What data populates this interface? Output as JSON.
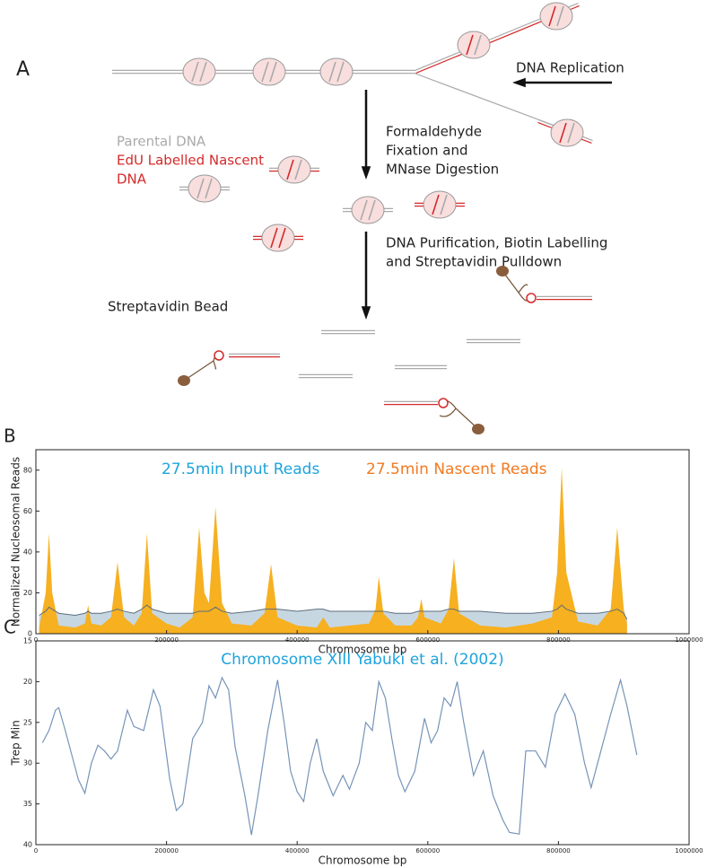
{
  "diagram": {
    "panel_label": "A",
    "replication": "DNA Replication",
    "parental": "Parental DNA",
    "nascent_lines": [
      "EdU Labelled Nascent",
      "DNA"
    ],
    "fixation_lines": [
      "Formaldehyde",
      "Fixation and",
      "MNase Digestion"
    ],
    "purification_lines": [
      "DNA Purification, Biotin Labelling",
      "and Streptavidin Pulldown"
    ],
    "bead": "Streptavidin Bead"
  },
  "chart_data": [
    {
      "type": "area",
      "panel_label": "B",
      "xlabel": "Chromosome bp",
      "ylabel": "Normalized Nucleosomal Reads",
      "xlim": [
        0,
        1000000
      ],
      "xticks": [
        0,
        200000,
        400000,
        600000,
        800000,
        1000000
      ],
      "ylim": [
        0,
        90
      ],
      "yticks": [
        0,
        20,
        40,
        60,
        80
      ],
      "x": [
        5000,
        15000,
        20000,
        25000,
        35000,
        60000,
        75000,
        80000,
        85000,
        100000,
        115000,
        125000,
        135000,
        150000,
        162000,
        170000,
        178000,
        200000,
        220000,
        240000,
        250000,
        258000,
        265000,
        275000,
        285000,
        300000,
        330000,
        350000,
        360000,
        370000,
        400000,
        430000,
        440000,
        450000,
        480000,
        510000,
        520000,
        525000,
        532000,
        550000,
        575000,
        585000,
        590000,
        595000,
        620000,
        632000,
        640000,
        648000,
        680000,
        720000,
        760000,
        790000,
        798000,
        805000,
        812000,
        830000,
        860000,
        880000,
        890000,
        900000,
        905000
      ],
      "series": [
        {
          "name": "27.5min Input  Reads",
          "color": "#c7d7e2",
          "line_color": "#5d6f7c",
          "label_color": "#1ea3dc",
          "values": [
            9,
            11,
            13,
            12,
            10,
            9,
            10,
            11,
            10,
            10,
            11,
            12,
            11,
            10,
            12,
            14,
            12,
            10,
            10,
            10,
            11,
            11,
            11,
            13,
            11,
            10,
            11,
            12,
            12,
            12,
            11,
            12,
            12,
            11,
            11,
            11,
            11,
            11,
            11,
            10,
            10,
            11,
            11,
            11,
            11,
            12,
            12,
            11,
            11,
            10,
            10,
            11,
            12,
            14,
            12,
            10,
            10,
            11,
            12,
            10,
            7
          ]
        },
        {
          "name": "27.5min Nascent Reads",
          "color": "#f6b020",
          "label_color": "#f07a22",
          "values": [
            3,
            20,
            49,
            20,
            4,
            3,
            5,
            14,
            5,
            4,
            8,
            35,
            8,
            4,
            10,
            49,
            10,
            5,
            3,
            8,
            52,
            20,
            15,
            62,
            15,
            5,
            4,
            10,
            34,
            8,
            4,
            3,
            8,
            3,
            4,
            5,
            12,
            28,
            10,
            4,
            4,
            8,
            17,
            8,
            5,
            12,
            37,
            10,
            4,
            3,
            5,
            8,
            30,
            81,
            30,
            6,
            4,
            12,
            52,
            12,
            5
          ]
        }
      ]
    },
    {
      "type": "line",
      "panel_label": "C",
      "title": "Chromosome XIII Yabuki et al. (2002)",
      "title_color": "#1ea3dc",
      "xlabel": "Chromosome bp",
      "ylabel": "Trep Min",
      "y_inverted": true,
      "xlim": [
        0,
        1000000
      ],
      "xticks": [
        0,
        200000,
        400000,
        600000,
        800000,
        1000000
      ],
      "ylim": [
        15,
        40
      ],
      "yticks": [
        15,
        20,
        25,
        30,
        35,
        40
      ],
      "x": [
        10000,
        20000,
        30000,
        35000,
        45000,
        55000,
        65000,
        75000,
        85000,
        95000,
        105000,
        115000,
        125000,
        140000,
        150000,
        165000,
        180000,
        190000,
        205000,
        215000,
        225000,
        240000,
        255000,
        265000,
        275000,
        285000,
        295000,
        305000,
        320000,
        330000,
        340000,
        355000,
        370000,
        380000,
        390000,
        400000,
        410000,
        420000,
        430000,
        440000,
        455000,
        470000,
        480000,
        495000,
        505000,
        515000,
        525000,
        535000,
        545000,
        555000,
        565000,
        580000,
        595000,
        605000,
        615000,
        625000,
        635000,
        645000,
        655000,
        670000,
        685000,
        700000,
        715000,
        725000,
        740000,
        750000,
        765000,
        780000,
        795000,
        810000,
        825000,
        840000,
        850000,
        865000,
        880000,
        895000,
        905000,
        920000
      ],
      "series": [
        {
          "color": "#7694b8",
          "values": [
            27.5,
            26,
            23.5,
            23.2,
            26,
            29,
            32,
            33.7,
            30,
            27.8,
            28.5,
            29.5,
            28.5,
            23.5,
            25.5,
            26,
            21,
            23,
            32,
            35.8,
            35,
            27,
            25,
            20.5,
            22,
            19.5,
            21,
            28,
            34,
            38.8,
            34,
            26,
            19.8,
            25,
            31,
            33.5,
            34.7,
            30,
            27,
            31,
            34,
            31.5,
            33.2,
            30,
            25,
            26,
            20,
            22,
            27,
            31.5,
            33.5,
            31,
            24.5,
            27.5,
            26,
            22,
            23,
            20,
            25,
            31.5,
            28.5,
            34,
            37,
            38.5,
            38.7,
            28.5,
            28.5,
            30.5,
            24,
            21.5,
            24,
            30,
            33,
            28.5,
            24,
            19.8,
            23,
            29
          ]
        }
      ]
    }
  ]
}
